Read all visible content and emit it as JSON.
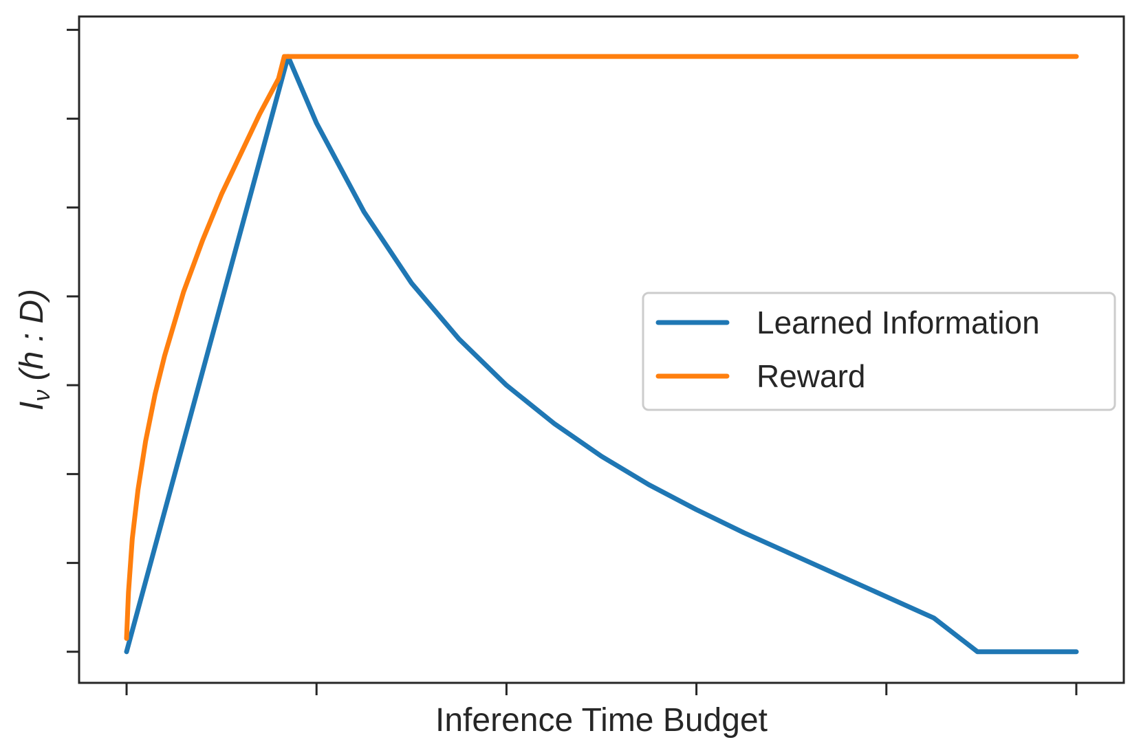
{
  "chart_data": {
    "type": "line",
    "title": "",
    "xlabel": "Inference Time Budget",
    "ylabel": "I_ν (h : D)",
    "ylabel_parts": {
      "main": "I",
      "sub": "ν",
      "rest": " (h : D)"
    },
    "xlim": [
      -0.25,
      5.25
    ],
    "ylim": [
      -0.35,
      7.15
    ],
    "x_ticks": [
      0,
      1,
      2,
      3,
      4,
      5
    ],
    "y_ticks": [
      0,
      1,
      2,
      3,
      4,
      5,
      6,
      7
    ],
    "tick_labels_visible": false,
    "grid": false,
    "legend": {
      "position": "center-right",
      "entries": [
        "Learned Information",
        "Reward"
      ]
    },
    "series": [
      {
        "name": "Learned Information",
        "color": "#1f77b4",
        "points": [
          [
            0,
            0
          ],
          [
            0.85,
            6.7
          ],
          [
            1.0,
            5.95
          ],
          [
            1.25,
            4.95
          ],
          [
            1.5,
            4.15
          ],
          [
            1.75,
            3.52
          ],
          [
            2.0,
            3.0
          ],
          [
            2.25,
            2.57
          ],
          [
            2.5,
            2.2
          ],
          [
            2.75,
            1.88
          ],
          [
            3.0,
            1.6
          ],
          [
            3.25,
            1.34
          ],
          [
            3.5,
            1.1
          ],
          [
            3.75,
            0.86
          ],
          [
            4.0,
            0.62
          ],
          [
            4.25,
            0.38
          ],
          [
            4.48,
            0.0
          ],
          [
            5.0,
            0.0
          ]
        ]
      },
      {
        "name": "Reward",
        "color": "#ff7f0e",
        "points": [
          [
            0,
            0.15
          ],
          [
            0.01,
            0.67
          ],
          [
            0.03,
            1.27
          ],
          [
            0.06,
            1.82
          ],
          [
            0.1,
            2.37
          ],
          [
            0.15,
            2.9
          ],
          [
            0.2,
            3.33
          ],
          [
            0.3,
            4.05
          ],
          [
            0.4,
            4.63
          ],
          [
            0.5,
            5.15
          ],
          [
            0.6,
            5.6
          ],
          [
            0.7,
            6.05
          ],
          [
            0.8,
            6.45
          ],
          [
            0.83,
            6.7
          ],
          [
            5.0,
            6.7
          ]
        ]
      }
    ]
  }
}
